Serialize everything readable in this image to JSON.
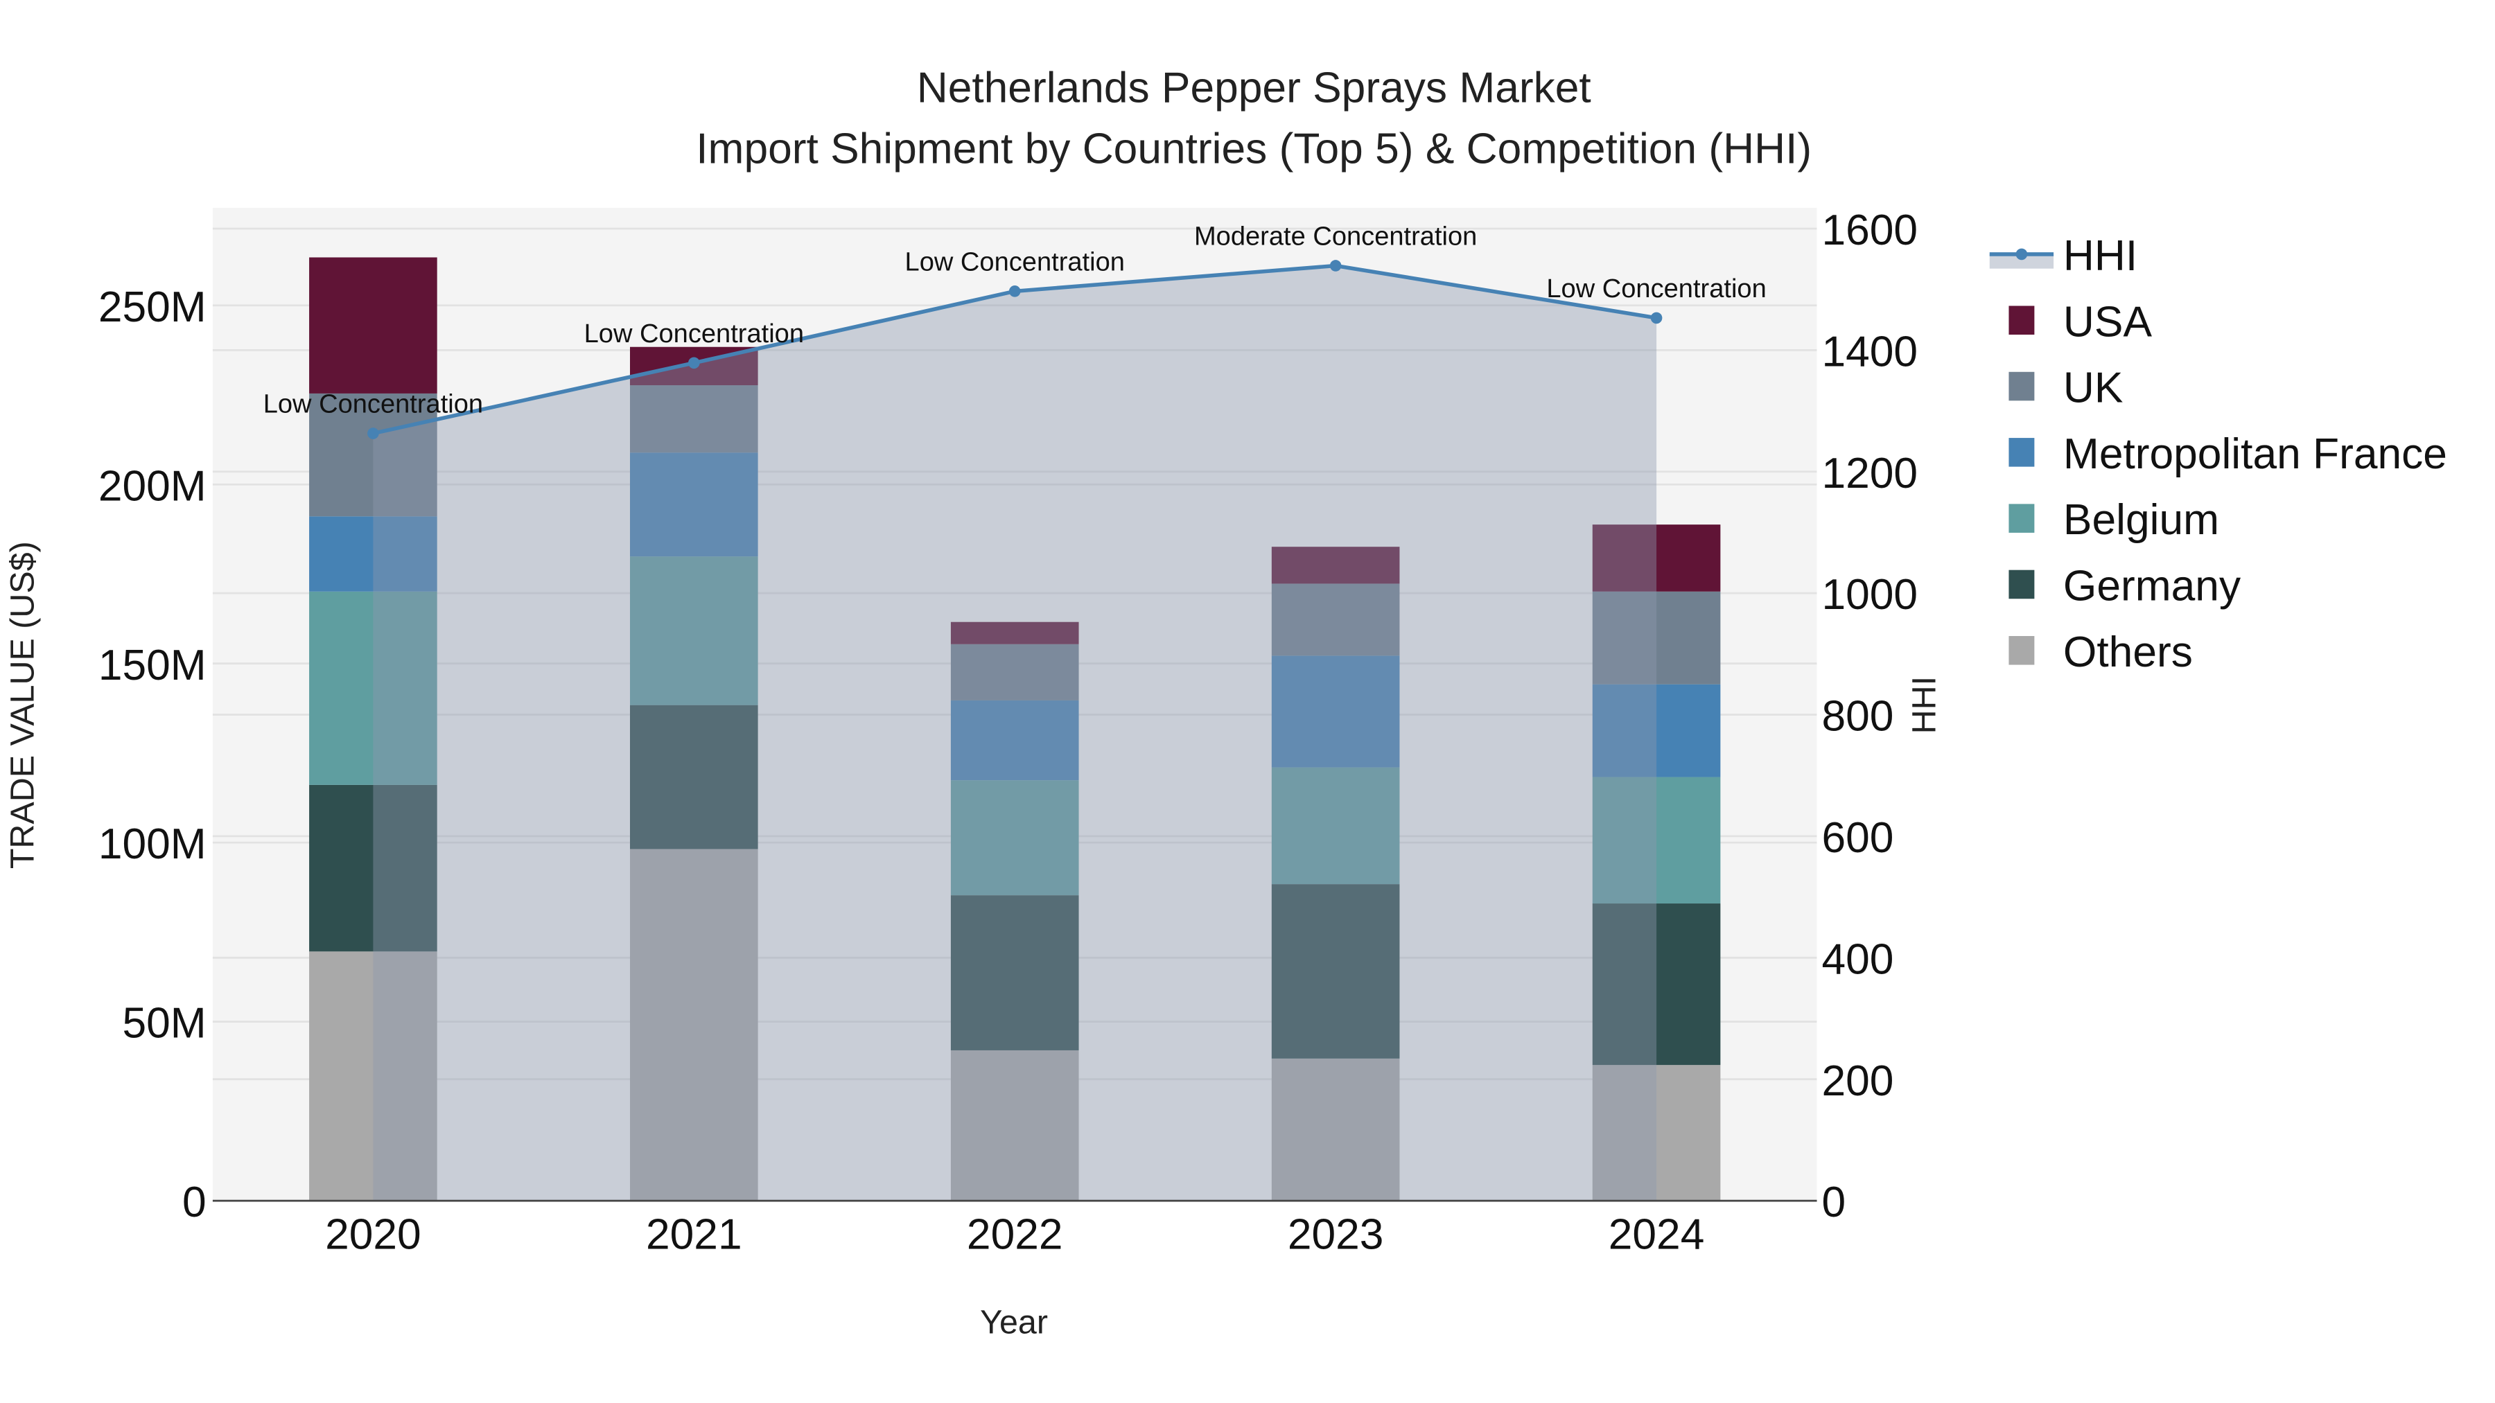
{
  "chart_data": {
    "type": "bar",
    "subtype": "stacked bar with line overlay (secondary axis, filled area)",
    "title": "Netherlands Pepper Sprays Market",
    "subtitle": "Import Shipment by Countries (Top 5) & Competition (HHI)",
    "xlabel": "Year",
    "ylabel": "TRADE VALUE (US$)",
    "y2label": "HHI",
    "categories": [
      "2020",
      "2021",
      "2022",
      "2023",
      "2024"
    ],
    "ylim": [
      0,
      275000000
    ],
    "y_ticks": [
      0,
      50000000,
      100000000,
      150000000,
      200000000,
      250000000
    ],
    "y_tick_labels": [
      "0",
      "50M",
      "100M",
      "150M",
      "200M",
      "250M"
    ],
    "y2lim": [
      0,
      1630
    ],
    "y2_ticks": [
      0,
      200,
      400,
      600,
      800,
      1000,
      1200,
      1400,
      1600
    ],
    "y2_tick_labels": [
      "0",
      "200",
      "400",
      "600",
      "800",
      "1000",
      "1200",
      "1400",
      "1600"
    ],
    "grid": true,
    "legend_position": "right",
    "series": [
      {
        "name": "Others",
        "color": "#A9A9A9",
        "values": [
          69600000,
          98200000,
          42000000,
          39700000,
          37900000
        ]
      },
      {
        "name": "Germany",
        "color": "#2F4F4F",
        "values": [
          46500000,
          40200000,
          43300000,
          48700000,
          45100000
        ]
      },
      {
        "name": "Belgium",
        "color": "#5F9EA0",
        "values": [
          54000000,
          41500000,
          32100000,
          32600000,
          35300000
        ]
      },
      {
        "name": "Metropolitan France",
        "color": "#4682B4",
        "values": [
          21000000,
          29000000,
          22300000,
          31200000,
          25900000
        ]
      },
      {
        "name": "UK",
        "color": "#708090",
        "values": [
          34300000,
          18800000,
          15700000,
          20100000,
          25900000
        ]
      },
      {
        "name": "USA",
        "color": "#601436",
        "values": [
          38000000,
          10700000,
          6200000,
          10300000,
          18700000
        ]
      }
    ],
    "line_series": {
      "name": "HHI",
      "axis": "y2",
      "color": "#4682B4",
      "fill_color": "#8c99ad",
      "values": [
        1263,
        1379,
        1497,
        1539,
        1453
      ],
      "annotations": [
        "Low Concentration",
        "Low Concentration",
        "Low Concentration",
        "Moderate Concentration",
        "Low Concentration"
      ]
    }
  },
  "legend": {
    "items": [
      "HHI",
      "USA",
      "UK",
      "Metropolitan France",
      "Belgium",
      "Germany",
      "Others"
    ]
  }
}
